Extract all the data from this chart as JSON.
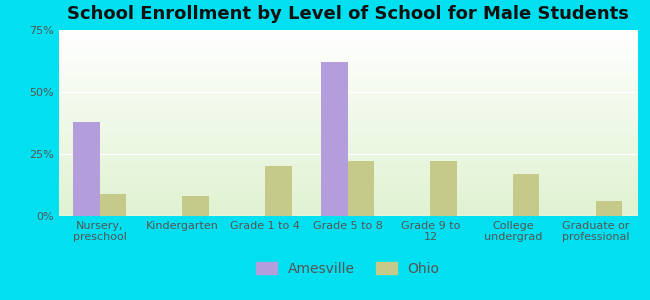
{
  "title": "School Enrollment by Level of School for Male Students",
  "categories": [
    "Nursery,\npreschool",
    "Kindergarten",
    "Grade 1 to 4",
    "Grade 5 to 8",
    "Grade 9 to\n12",
    "College\nundergrad",
    "Graduate or\nprofessional"
  ],
  "amesville_values": [
    38,
    0,
    0,
    62,
    0,
    0,
    0
  ],
  "ohio_values": [
    9,
    8,
    20,
    22,
    22,
    17,
    6
  ],
  "amesville_color": "#b39ddb",
  "ohio_color": "#c5c98a",
  "background_outer": "#00e0f0",
  "background_inner": "#eef5e0",
  "ylim": [
    0,
    75
  ],
  "yticks": [
    0,
    25,
    50,
    75
  ],
  "ytick_labels": [
    "0%",
    "25%",
    "50%",
    "75%"
  ],
  "legend_labels": [
    "Amesville",
    "Ohio"
  ],
  "title_fontsize": 13,
  "tick_fontsize": 8,
  "legend_fontsize": 10,
  "bar_width": 0.32
}
